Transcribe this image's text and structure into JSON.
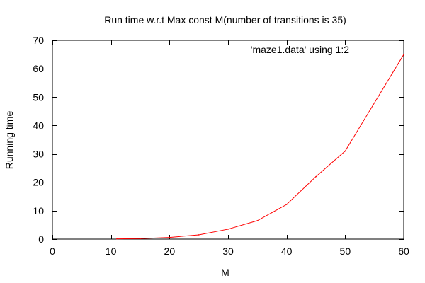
{
  "chart_data": {
    "type": "line",
    "title": "Run time w.r.t Max const M(number of transitions is 35)",
    "xlabel": "M",
    "ylabel": "Running time",
    "xlim": [
      0,
      60
    ],
    "ylim": [
      0,
      70
    ],
    "xticks": [
      "0",
      "10",
      "20",
      "30",
      "40",
      "50",
      "60"
    ],
    "yticks": [
      "0",
      "10",
      "20",
      "30",
      "40",
      "50",
      "60",
      "70"
    ],
    "grid": false,
    "legend_position": "top-right",
    "series": [
      {
        "name": "'maze1.data' using 1:2",
        "color": "#ff0000",
        "x": [
          11,
          15,
          20,
          25,
          30,
          35,
          40,
          45,
          50,
          60
        ],
        "y": [
          0.1,
          0.2,
          0.6,
          1.5,
          3.5,
          6.5,
          12.2,
          22,
          31,
          65
        ]
      }
    ]
  }
}
